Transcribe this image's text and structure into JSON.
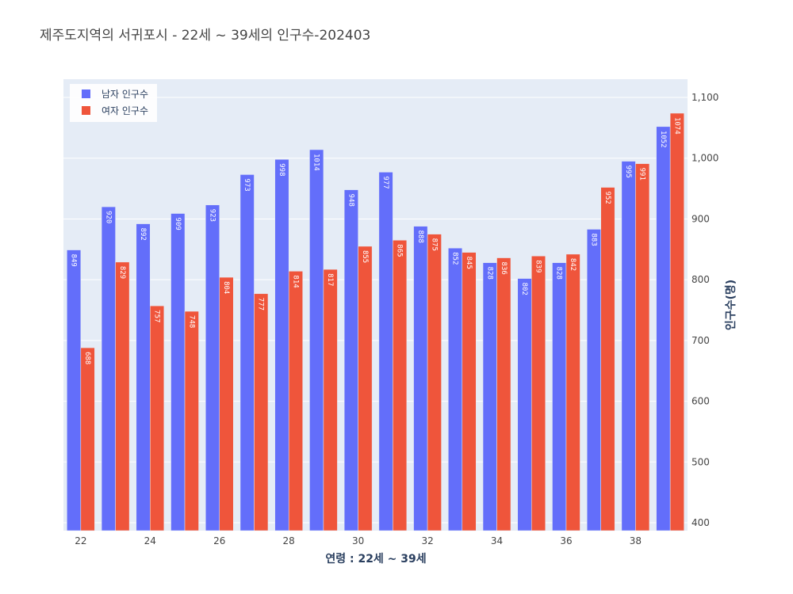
{
  "chart_data": {
    "type": "bar",
    "title": "제주도지역의 서귀포시 - 22세 ~ 39세의 인구수-202403",
    "xlabel": "연령 : 22세 ~ 39세",
    "ylabel": "인구수(명)",
    "x": [
      22,
      23,
      24,
      25,
      26,
      27,
      28,
      29,
      30,
      31,
      32,
      33,
      34,
      35,
      36,
      37,
      38,
      39
    ],
    "x_ticks": [
      22,
      24,
      26,
      28,
      30,
      32,
      34,
      36,
      38
    ],
    "y_ticks": [
      400,
      500,
      600,
      700,
      800,
      900,
      1000,
      1100
    ],
    "y_tick_labels": [
      "400",
      "500",
      "600",
      "700",
      "800",
      "900",
      "1,000",
      "1,100"
    ],
    "ylim": [
      387,
      1130
    ],
    "y_axis_side": "right",
    "grid": true,
    "legend_position": "top-left",
    "series": [
      {
        "name": "남자 인구수",
        "color": "#636efa",
        "values": [
          849,
          920,
          892,
          909,
          923,
          973,
          998,
          1014,
          948,
          977,
          888,
          852,
          828,
          802,
          828,
          883,
          995,
          1052
        ]
      },
      {
        "name": "여자 인구수",
        "color": "#ef553b",
        "values": [
          688,
          829,
          757,
          748,
          804,
          777,
          814,
          817,
          855,
          865,
          875,
          845,
          836,
          839,
          842,
          952,
          991,
          1074
        ]
      }
    ]
  },
  "colors": {
    "plot_bg": "#e5ecf6",
    "grid": "#ffffff"
  }
}
